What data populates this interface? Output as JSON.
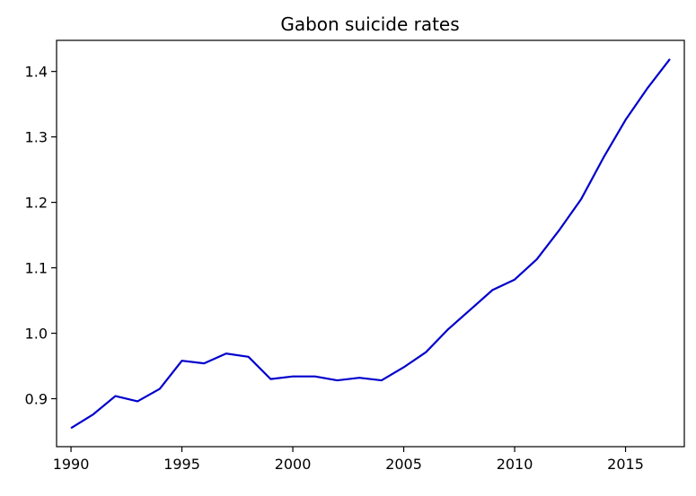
{
  "chart_data": {
    "type": "line",
    "title": "Gabon suicide rates",
    "xlabel": "",
    "ylabel": "",
    "x": [
      1990,
      1991,
      1992,
      1993,
      1994,
      1995,
      1996,
      1997,
      1998,
      1999,
      2000,
      2001,
      2002,
      2003,
      2004,
      2005,
      2006,
      2007,
      2008,
      2009,
      2010,
      2011,
      2012,
      2013,
      2014,
      2015,
      2016,
      2017
    ],
    "series": [
      {
        "values": [
          0.855,
          0.876,
          0.904,
          0.896,
          0.915,
          0.958,
          0.954,
          0.969,
          0.964,
          0.93,
          0.934,
          0.934,
          0.928,
          0.932,
          0.928,
          0.948,
          0.971,
          1.006,
          1.036,
          1.066,
          1.082,
          1.113,
          1.157,
          1.205,
          1.268,
          1.326,
          1.375,
          1.419
        ],
        "color": "#0000cc"
      }
    ],
    "xlim": [
      1989.35,
      2017.65
    ],
    "ylim": [
      0.8267,
      1.4475
    ],
    "xticks": [
      "1990",
      "1995",
      "2000",
      "2005",
      "2010",
      "2015"
    ],
    "yticks": [
      "0.9",
      "1.0",
      "1.1",
      "1.2",
      "1.3",
      "1.4"
    ],
    "grid": false,
    "legend": "none"
  }
}
